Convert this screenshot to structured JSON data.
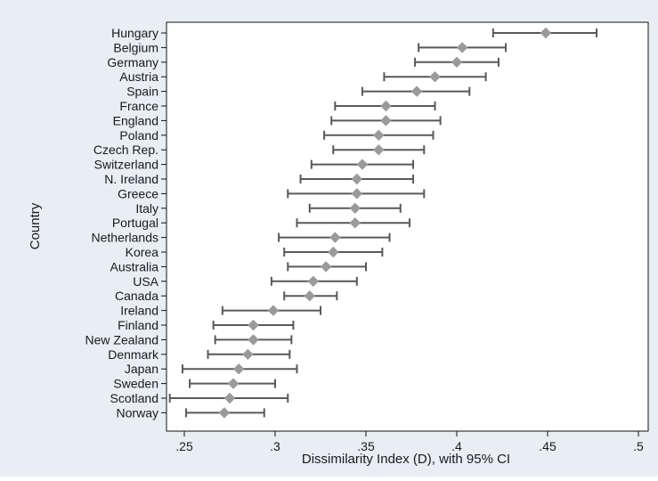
{
  "chart_data": {
    "type": "scatter",
    "subtype": "dot-plot-with-error-bars",
    "xlabel": "Dissimilarity Index (D), with 95% CI",
    "ylabel": "Country",
    "xlim": [
      0.235,
      0.5
    ],
    "x_ticks": [
      {
        "value": 0.25,
        "label": ".25"
      },
      {
        "value": 0.3,
        "label": ".3"
      },
      {
        "value": 0.35,
        "label": ".35"
      },
      {
        "value": 0.4,
        "label": ".4"
      },
      {
        "value": 0.45,
        "label": ".45"
      },
      {
        "value": 0.5,
        "label": ".5"
      }
    ],
    "grid": false,
    "legend": "none",
    "colors": {
      "marker": "#9a9a9a",
      "error_bar": "#595959",
      "frame_bg": "#e8eef3",
      "plot_bg": "#ffffff"
    },
    "points": [
      {
        "label": "Hungary",
        "value": 0.449,
        "low": 0.42,
        "high": 0.477
      },
      {
        "label": "Belgium",
        "value": 0.403,
        "low": 0.379,
        "high": 0.427
      },
      {
        "label": "Germany",
        "value": 0.4,
        "low": 0.377,
        "high": 0.423
      },
      {
        "label": "Austria",
        "value": 0.388,
        "low": 0.36,
        "high": 0.416
      },
      {
        "label": "Spain",
        "value": 0.378,
        "low": 0.348,
        "high": 0.407
      },
      {
        "label": "France",
        "value": 0.361,
        "low": 0.333,
        "high": 0.388
      },
      {
        "label": "England",
        "value": 0.361,
        "low": 0.331,
        "high": 0.391
      },
      {
        "label": "Poland",
        "value": 0.357,
        "low": 0.327,
        "high": 0.387
      },
      {
        "label": "Czech Rep.",
        "value": 0.357,
        "low": 0.332,
        "high": 0.382
      },
      {
        "label": "Switzerland",
        "value": 0.348,
        "low": 0.32,
        "high": 0.376
      },
      {
        "label": "N. Ireland",
        "value": 0.345,
        "low": 0.314,
        "high": 0.376
      },
      {
        "label": "Greece",
        "value": 0.345,
        "low": 0.307,
        "high": 0.382
      },
      {
        "label": "Italy",
        "value": 0.344,
        "low": 0.319,
        "high": 0.369
      },
      {
        "label": "Portugal",
        "value": 0.344,
        "low": 0.312,
        "high": 0.374
      },
      {
        "label": "Netherlands",
        "value": 0.333,
        "low": 0.302,
        "high": 0.363
      },
      {
        "label": "Korea",
        "value": 0.332,
        "low": 0.305,
        "high": 0.359
      },
      {
        "label": "Australia",
        "value": 0.328,
        "low": 0.307,
        "high": 0.35
      },
      {
        "label": "USA",
        "value": 0.321,
        "low": 0.298,
        "high": 0.345
      },
      {
        "label": "Canada",
        "value": 0.319,
        "low": 0.305,
        "high": 0.334
      },
      {
        "label": "Ireland",
        "value": 0.299,
        "low": 0.271,
        "high": 0.325
      },
      {
        "label": "Finland",
        "value": 0.288,
        "low": 0.266,
        "high": 0.31
      },
      {
        "label": "New Zealand",
        "value": 0.288,
        "low": 0.267,
        "high": 0.309
      },
      {
        "label": "Denmark",
        "value": 0.285,
        "low": 0.263,
        "high": 0.308
      },
      {
        "label": "Japan",
        "value": 0.28,
        "low": 0.249,
        "high": 0.312
      },
      {
        "label": "Sweden",
        "value": 0.277,
        "low": 0.253,
        "high": 0.3
      },
      {
        "label": "Scotland",
        "value": 0.275,
        "low": 0.242,
        "high": 0.307
      },
      {
        "label": "Norway",
        "value": 0.272,
        "low": 0.251,
        "high": 0.294
      }
    ]
  }
}
